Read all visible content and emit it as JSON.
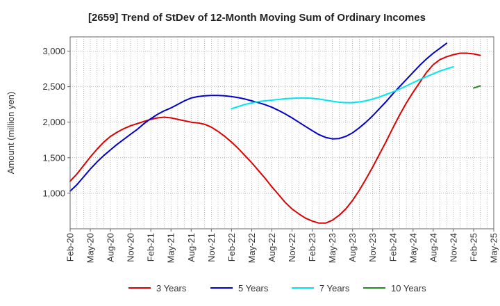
{
  "chart_data": {
    "type": "line",
    "title": "[2659]  Trend of StDev of 12-Month Moving Sum of Ordinary Incomes",
    "xlabel": "",
    "ylabel": "Amount (million yen)",
    "ylim": [
      500,
      3200
    ],
    "yticks": [
      1000,
      1500,
      2000,
      2500,
      3000
    ],
    "ytick_labels": [
      "1,000",
      "1,500",
      "2,000",
      "2,500",
      "3,000"
    ],
    "x_tick_labels": [
      "Feb-20",
      "May-20",
      "Aug-20",
      "Nov-20",
      "Feb-21",
      "May-21",
      "Aug-21",
      "Nov-21",
      "Feb-22",
      "May-22",
      "Aug-22",
      "Nov-22",
      "Feb-23",
      "May-23",
      "Aug-23",
      "Nov-23",
      "Feb-24",
      "May-24",
      "Aug-24",
      "Nov-24",
      "Feb-25",
      "May-25"
    ],
    "x_start": "Feb-20",
    "x_end": "May-25",
    "grid": true,
    "legend_position": "bottom",
    "series": [
      {
        "name": "3 Years",
        "color": "#dd0000",
        "start_month": 0,
        "values": [
          1170,
          1270,
          1390,
          1510,
          1620,
          1720,
          1800,
          1860,
          1910,
          1950,
          1980,
          2010,
          2040,
          2060,
          2070,
          2060,
          2040,
          2020,
          2000,
          1990,
          1970,
          1930,
          1870,
          1800,
          1720,
          1630,
          1530,
          1430,
          1320,
          1210,
          1090,
          980,
          870,
          780,
          710,
          650,
          610,
          580,
          580,
          620,
          690,
          780,
          900,
          1040,
          1200,
          1370,
          1550,
          1730,
          1920,
          2100,
          2270,
          2420,
          2560,
          2700,
          2810,
          2880,
          2920,
          2950,
          2970,
          2970,
          2960,
          2940
        ]
      },
      {
        "name": "5 Years",
        "color": "#0000cc",
        "start_month": 0,
        "values": [
          1030,
          1120,
          1230,
          1340,
          1440,
          1530,
          1610,
          1690,
          1760,
          1830,
          1900,
          1980,
          2050,
          2110,
          2160,
          2200,
          2250,
          2300,
          2340,
          2360,
          2370,
          2375,
          2375,
          2370,
          2360,
          2345,
          2325,
          2300,
          2275,
          2245,
          2210,
          2165,
          2115,
          2060,
          2000,
          1940,
          1880,
          1825,
          1785,
          1765,
          1770,
          1800,
          1850,
          1920,
          2000,
          2090,
          2190,
          2290,
          2400,
          2500,
          2600,
          2700,
          2800,
          2890,
          2970,
          3040,
          3110
        ]
      },
      {
        "name": "7 Years",
        "color": "#00e5ee",
        "start_month": 24,
        "values": [
          2190,
          2220,
          2250,
          2270,
          2290,
          2300,
          2310,
          2320,
          2330,
          2335,
          2340,
          2340,
          2335,
          2325,
          2310,
          2295,
          2280,
          2275,
          2275,
          2285,
          2300,
          2325,
          2355,
          2390,
          2425,
          2465,
          2510,
          2555,
          2600,
          2640,
          2680,
          2720,
          2750,
          2780
        ]
      },
      {
        "name": "10 Years",
        "color": "#228b22",
        "start_month": 60,
        "values": [
          2480,
          2510
        ]
      }
    ]
  }
}
